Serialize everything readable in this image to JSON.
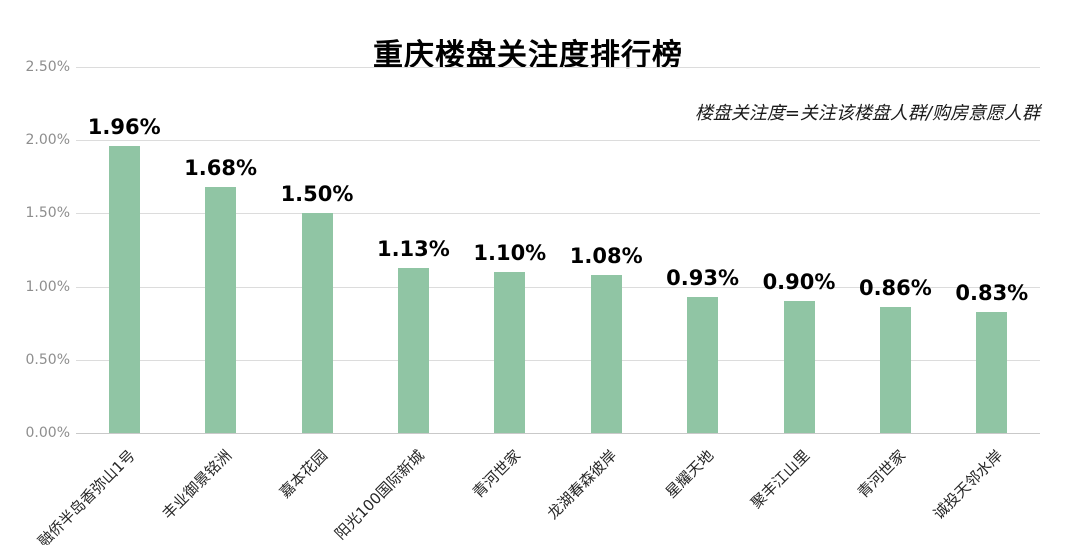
{
  "chart": {
    "title": "重庆楼盘关注度排行榜",
    "subtitle": "楼盘关注度=关注该楼盘人群/购房意愿人群"
  },
  "chart_data": {
    "type": "bar",
    "title": "重庆楼盘关注度排行榜",
    "subtitle": "楼盘关注度=关注该楼盘人群/购房意愿人群",
    "categories": [
      "融侨半岛香弥山1号",
      "丰业御景铭洲",
      "嘉本花园",
      "阳光100国际新城",
      "青河世家",
      "龙湖春森彼岸",
      "星耀天地",
      "聚丰江山里",
      "青河世家",
      "诚投天邻水岸"
    ],
    "values": [
      1.96,
      1.68,
      1.5,
      1.13,
      1.1,
      1.08,
      0.93,
      0.9,
      0.86,
      0.83
    ],
    "value_labels": [
      "1.96%",
      "1.68%",
      "1.50%",
      "1.13%",
      "1.10%",
      "1.08%",
      "0.93%",
      "0.90%",
      "0.86%",
      "0.83%"
    ],
    "y_ticks": [
      "0.00%",
      "0.50%",
      "1.00%",
      "1.50%",
      "2.00%",
      "2.50%"
    ],
    "ylim": [
      0,
      2.5
    ],
    "xlabel": "",
    "ylabel": "",
    "grid": true,
    "legend": false,
    "bar_color": "#90c5a4",
    "x_label_rotation_deg": -45
  }
}
